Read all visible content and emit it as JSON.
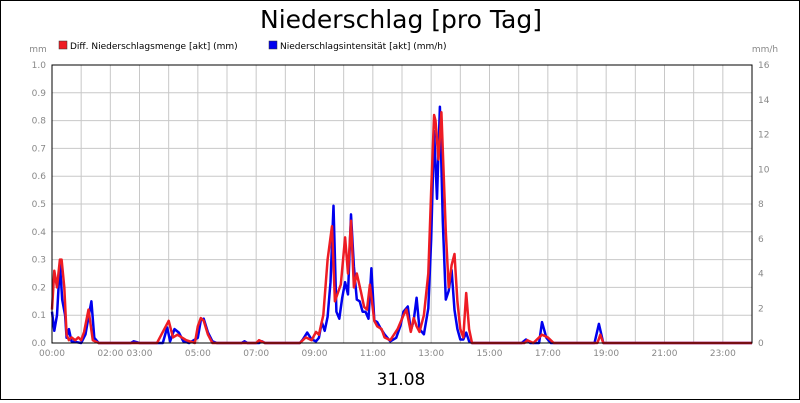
{
  "chart_data": {
    "type": "line",
    "title": "Niederschlag [pro Tag]",
    "date_label": "31.08",
    "y_left_unit": "mm",
    "y_right_unit": "mm/h",
    "ylim_left": [
      0,
      1.0
    ],
    "ylim_right": [
      0,
      16
    ],
    "y_left_ticks": [
      "0.0",
      "0.1",
      "0.2",
      "0.3",
      "0.4",
      "0.5",
      "0.6",
      "0.7",
      "0.8",
      "0.9",
      "1.0"
    ],
    "y_right_ticks": [
      "0",
      "2",
      "4",
      "6",
      "8",
      "10",
      "12",
      "14",
      "16"
    ],
    "x_ticks": [
      "00:00",
      "02:00",
      "03:00",
      "05:00",
      "07:00",
      "09:00",
      "11:00",
      "13:00",
      "15:00",
      "17:00",
      "19:00",
      "21:00",
      "23:00"
    ],
    "x_tick_hours": [
      0,
      2,
      3,
      5,
      7,
      9,
      11,
      13,
      15,
      17,
      19,
      21,
      23
    ],
    "x_range_hours": [
      0,
      24
    ],
    "grid": true,
    "legend_position": "top-left",
    "series": [
      {
        "name": "Diff. Niederschlagsmenge [akt] (mm)",
        "color": "#ee1c24",
        "axis": "left",
        "points": [
          [
            0,
            0.12
          ],
          [
            0.08,
            0.26
          ],
          [
            0.17,
            0.2
          ],
          [
            0.27,
            0.3
          ],
          [
            0.33,
            0.3
          ],
          [
            0.42,
            0.2
          ],
          [
            0.5,
            0.03
          ],
          [
            0.58,
            0.01
          ],
          [
            0.67,
            0.02
          ],
          [
            0.8,
            0.01
          ],
          [
            0.9,
            0.02
          ],
          [
            1.0,
            0.01
          ],
          [
            1.1,
            0.04
          ],
          [
            1.25,
            0.12
          ],
          [
            1.4,
            0.01
          ],
          [
            1.6,
            0.0
          ],
          [
            3.6,
            0.0
          ],
          [
            3.7,
            0.02
          ],
          [
            4.0,
            0.08
          ],
          [
            4.15,
            0.02
          ],
          [
            4.3,
            0.03
          ],
          [
            4.45,
            0.02
          ],
          [
            4.6,
            0.01
          ],
          [
            4.9,
            0.0
          ],
          [
            5.0,
            0.06
          ],
          [
            5.1,
            0.09
          ],
          [
            5.2,
            0.08
          ],
          [
            5.35,
            0.03
          ],
          [
            5.5,
            0.0
          ],
          [
            7.0,
            0.0
          ],
          [
            7.1,
            0.01
          ],
          [
            7.3,
            0.0
          ],
          [
            8.5,
            0.0
          ],
          [
            8.7,
            0.02
          ],
          [
            8.9,
            0.01
          ],
          [
            9.05,
            0.04
          ],
          [
            9.15,
            0.03
          ],
          [
            9.3,
            0.1
          ],
          [
            9.45,
            0.3
          ],
          [
            9.6,
            0.42
          ],
          [
            9.7,
            0.15
          ],
          [
            9.8,
            0.18
          ],
          [
            9.9,
            0.21
          ],
          [
            10.05,
            0.38
          ],
          [
            10.15,
            0.25
          ],
          [
            10.25,
            0.44
          ],
          [
            10.35,
            0.2
          ],
          [
            10.45,
            0.25
          ],
          [
            10.6,
            0.18
          ],
          [
            10.7,
            0.13
          ],
          [
            10.8,
            0.12
          ],
          [
            10.9,
            0.21
          ],
          [
            11.05,
            0.08
          ],
          [
            11.15,
            0.06
          ],
          [
            11.3,
            0.05
          ],
          [
            11.4,
            0.02
          ],
          [
            11.6,
            0.01
          ],
          [
            11.85,
            0.05
          ],
          [
            12.05,
            0.1
          ],
          [
            12.15,
            0.12
          ],
          [
            12.3,
            0.04
          ],
          [
            12.4,
            0.09
          ],
          [
            12.5,
            0.06
          ],
          [
            12.6,
            0.04
          ],
          [
            12.75,
            0.1
          ],
          [
            12.9,
            0.25
          ],
          [
            13.0,
            0.55
          ],
          [
            13.1,
            0.82
          ],
          [
            13.15,
            0.8
          ],
          [
            13.25,
            0.66
          ],
          [
            13.35,
            0.83
          ],
          [
            13.5,
            0.4
          ],
          [
            13.6,
            0.2
          ],
          [
            13.7,
            0.28
          ],
          [
            13.8,
            0.32
          ],
          [
            13.9,
            0.15
          ],
          [
            14.0,
            0.05
          ],
          [
            14.1,
            0.02
          ],
          [
            14.2,
            0.18
          ],
          [
            14.3,
            0.05
          ],
          [
            14.4,
            0.0
          ],
          [
            16.2,
            0.0
          ],
          [
            16.3,
            0.01
          ],
          [
            16.5,
            0.0
          ],
          [
            16.8,
            0.03
          ],
          [
            17.0,
            0.02
          ],
          [
            17.2,
            0.0
          ],
          [
            18.7,
            0.0
          ],
          [
            18.8,
            0.03
          ],
          [
            18.9,
            0.0
          ],
          [
            24,
            0.0
          ]
        ]
      },
      {
        "name": "Niederschlagsintensität [akt] (mm/h)",
        "color": "#0000ee",
        "axis": "right",
        "points": [
          [
            0,
            1.8
          ],
          [
            0.08,
            0.7
          ],
          [
            0.17,
            1.6
          ],
          [
            0.27,
            4.6
          ],
          [
            0.35,
            2.5
          ],
          [
            0.45,
            1.6
          ],
          [
            0.5,
            0.3
          ],
          [
            0.58,
            0.8
          ],
          [
            0.67,
            0.1
          ],
          [
            1.0,
            0.0
          ],
          [
            1.15,
            0.5
          ],
          [
            1.25,
            1.5
          ],
          [
            1.35,
            2.4
          ],
          [
            1.45,
            0.3
          ],
          [
            1.6,
            0.0
          ],
          [
            2.7,
            0.0
          ],
          [
            2.8,
            0.1
          ],
          [
            3.0,
            0.0
          ],
          [
            3.8,
            0.0
          ],
          [
            3.95,
            0.9
          ],
          [
            4.05,
            0.1
          ],
          [
            4.2,
            0.8
          ],
          [
            4.35,
            0.6
          ],
          [
            4.5,
            0.1
          ],
          [
            4.7,
            0.0
          ],
          [
            5.0,
            0.3
          ],
          [
            5.1,
            1.3
          ],
          [
            5.2,
            1.4
          ],
          [
            5.35,
            0.6
          ],
          [
            5.5,
            0.1
          ],
          [
            5.65,
            0.0
          ],
          [
            6.5,
            0.0
          ],
          [
            6.6,
            0.1
          ],
          [
            6.7,
            0.0
          ],
          [
            7.1,
            0.0
          ],
          [
            7.2,
            0.1
          ],
          [
            7.3,
            0.0
          ],
          [
            8.5,
            0.0
          ],
          [
            8.6,
            0.2
          ],
          [
            8.75,
            0.6
          ],
          [
            8.9,
            0.2
          ],
          [
            9.05,
            0.1
          ],
          [
            9.15,
            0.3
          ],
          [
            9.25,
            1.2
          ],
          [
            9.35,
            0.7
          ],
          [
            9.45,
            1.5
          ],
          [
            9.55,
            3.5
          ],
          [
            9.65,
            7.9
          ],
          [
            9.75,
            1.8
          ],
          [
            9.85,
            1.4
          ],
          [
            9.95,
            2.6
          ],
          [
            10.05,
            3.5
          ],
          [
            10.15,
            2.8
          ],
          [
            10.25,
            7.4
          ],
          [
            10.35,
            4.4
          ],
          [
            10.45,
            2.5
          ],
          [
            10.55,
            2.4
          ],
          [
            10.65,
            1.8
          ],
          [
            10.75,
            1.8
          ],
          [
            10.85,
            1.4
          ],
          [
            10.95,
            4.3
          ],
          [
            11.05,
            1.3
          ],
          [
            11.15,
            1.2
          ],
          [
            11.25,
            0.9
          ],
          [
            11.4,
            0.5
          ],
          [
            11.6,
            0.1
          ],
          [
            11.8,
            0.3
          ],
          [
            11.95,
            1.0
          ],
          [
            12.05,
            1.8
          ],
          [
            12.2,
            2.1
          ],
          [
            12.3,
            0.7
          ],
          [
            12.4,
            1.3
          ],
          [
            12.5,
            2.6
          ],
          [
            12.6,
            0.8
          ],
          [
            12.75,
            0.5
          ],
          [
            12.9,
            2.0
          ],
          [
            13.0,
            6.0
          ],
          [
            13.1,
            12.2
          ],
          [
            13.2,
            8.3
          ],
          [
            13.3,
            13.6
          ],
          [
            13.4,
            7.0
          ],
          [
            13.5,
            2.5
          ],
          [
            13.6,
            3.0
          ],
          [
            13.7,
            4.2
          ],
          [
            13.8,
            1.9
          ],
          [
            13.9,
            0.8
          ],
          [
            14.0,
            0.2
          ],
          [
            14.1,
            0.2
          ],
          [
            14.2,
            0.6
          ],
          [
            14.3,
            0.1
          ],
          [
            14.4,
            0.0
          ],
          [
            16.1,
            0.0
          ],
          [
            16.25,
            0.2
          ],
          [
            16.4,
            0.0
          ],
          [
            16.7,
            0.0
          ],
          [
            16.8,
            1.2
          ],
          [
            16.95,
            0.3
          ],
          [
            17.1,
            0.0
          ],
          [
            18.6,
            0.0
          ],
          [
            18.75,
            1.1
          ],
          [
            18.9,
            0.0
          ],
          [
            24,
            0.0
          ]
        ]
      }
    ]
  }
}
